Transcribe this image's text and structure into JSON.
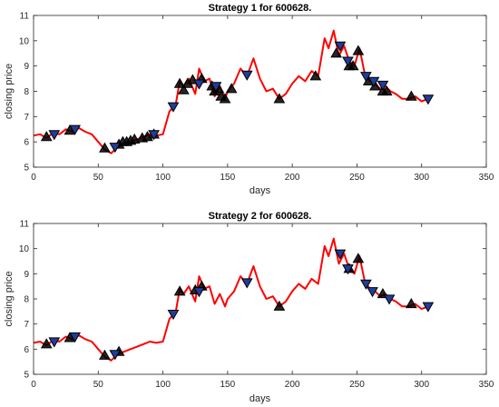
{
  "chart_data": [
    {
      "type": "line",
      "title": "Strategy 1 for 600628.",
      "xlabel": "days",
      "ylabel": "closing price",
      "xlim": [
        0,
        350
      ],
      "ylim": [
        5,
        11
      ],
      "xticks": [
        0,
        50,
        100,
        150,
        200,
        250,
        300,
        350
      ],
      "yticks": [
        5,
        6,
        7,
        8,
        9,
        10,
        11
      ],
      "grid": false,
      "line_color": "#ff0000",
      "series": [
        {
          "x": [
            0,
            5,
            10,
            15,
            20,
            25,
            30,
            35,
            40,
            45,
            50,
            55,
            60,
            65,
            70,
            75,
            80,
            85,
            90,
            95,
            100,
            105,
            110,
            113,
            116,
            120,
            125,
            128,
            132,
            136,
            140,
            144,
            148,
            150,
            155,
            160,
            165,
            170,
            175,
            180,
            185,
            190,
            195,
            200,
            205,
            210,
            215,
            220,
            225,
            228,
            232,
            236,
            240,
            244,
            248,
            252,
            256,
            260,
            264,
            268,
            272,
            276,
            280,
            285,
            290,
            295,
            300,
            305
          ],
          "y": [
            6.25,
            6.3,
            6.15,
            6.35,
            6.3,
            6.5,
            6.4,
            6.55,
            6.4,
            6.3,
            6.0,
            5.7,
            5.55,
            5.8,
            5.9,
            6.0,
            6.1,
            6.2,
            6.3,
            6.25,
            6.3,
            7.2,
            7.5,
            8.4,
            8.2,
            8.5,
            7.9,
            8.9,
            8.4,
            8.5,
            7.8,
            8.2,
            7.7,
            8.0,
            8.3,
            8.9,
            8.6,
            9.3,
            8.5,
            8.0,
            8.1,
            7.7,
            7.9,
            8.3,
            8.6,
            8.4,
            8.8,
            8.6,
            10.1,
            9.7,
            10.4,
            9.4,
            9.8,
            9.2,
            9.0,
            9.7,
            8.7,
            8.4,
            8.3,
            8.1,
            8.2,
            8.0,
            7.9,
            7.7,
            7.7,
            7.8,
            7.6,
            7.7
          ]
        }
      ],
      "markers": {
        "buy_color": "#000000",
        "buy_edge": "#000000",
        "sell_color": "#1f3d99",
        "sell_edge": "#000000",
        "buy": [
          [
            10,
            6.2
          ],
          [
            28,
            6.45
          ],
          [
            55,
            5.75
          ],
          [
            66,
            5.9
          ],
          [
            69,
            6.0
          ],
          [
            72,
            6.0
          ],
          [
            75,
            6.05
          ],
          [
            78,
            6.1
          ],
          [
            84,
            6.15
          ],
          [
            88,
            6.2
          ],
          [
            93,
            6.3
          ],
          [
            113,
            8.3
          ],
          [
            116,
            8.05
          ],
          [
            119,
            8.3
          ],
          [
            123,
            8.45
          ],
          [
            130,
            8.5
          ],
          [
            138,
            8.2
          ],
          [
            140,
            8.0
          ],
          [
            143,
            8.1
          ],
          [
            145,
            7.8
          ],
          [
            148,
            7.7
          ],
          [
            153,
            8.1
          ],
          [
            190,
            7.7
          ],
          [
            218,
            8.6
          ],
          [
            234,
            9.5
          ],
          [
            244,
            9.0
          ],
          [
            247,
            9.0
          ],
          [
            251,
            9.6
          ],
          [
            259,
            8.4
          ],
          [
            264,
            8.2
          ],
          [
            270,
            8.0
          ],
          [
            273,
            8.0
          ],
          [
            292,
            7.8
          ]
        ],
        "sell": [
          [
            16,
            6.3
          ],
          [
            32,
            6.5
          ],
          [
            63,
            5.8
          ],
          [
            93,
            6.3
          ],
          [
            108,
            7.4
          ],
          [
            128,
            8.3
          ],
          [
            141,
            8.2
          ],
          [
            165,
            8.65
          ],
          [
            237,
            9.8
          ],
          [
            243,
            9.2
          ],
          [
            257,
            8.6
          ],
          [
            263,
            8.4
          ],
          [
            270,
            8.25
          ],
          [
            305,
            7.7
          ]
        ]
      }
    },
    {
      "type": "line",
      "title": "Strategy 2 for 600628.",
      "xlabel": "days",
      "ylabel": "closing price",
      "xlim": [
        0,
        350
      ],
      "ylim": [
        5,
        11
      ],
      "xticks": [
        0,
        50,
        100,
        150,
        200,
        250,
        300,
        350
      ],
      "yticks": [
        5,
        6,
        7,
        8,
        9,
        10,
        11
      ],
      "grid": false,
      "line_color": "#ff0000",
      "series": [
        {
          "x": [
            0,
            5,
            10,
            15,
            20,
            25,
            30,
            35,
            40,
            45,
            50,
            55,
            60,
            65,
            70,
            75,
            80,
            85,
            90,
            95,
            100,
            105,
            110,
            113,
            116,
            120,
            125,
            128,
            132,
            136,
            140,
            144,
            148,
            150,
            155,
            160,
            165,
            170,
            175,
            180,
            185,
            190,
            195,
            200,
            205,
            210,
            215,
            220,
            225,
            228,
            232,
            236,
            240,
            244,
            248,
            252,
            256,
            260,
            264,
            268,
            272,
            276,
            280,
            285,
            290,
            295,
            300,
            305
          ],
          "y": [
            6.25,
            6.3,
            6.15,
            6.35,
            6.3,
            6.5,
            6.4,
            6.55,
            6.4,
            6.3,
            6.0,
            5.7,
            5.55,
            5.8,
            5.9,
            6.0,
            6.1,
            6.2,
            6.3,
            6.25,
            6.3,
            7.2,
            7.5,
            8.4,
            8.2,
            8.5,
            7.9,
            8.9,
            8.4,
            8.5,
            7.8,
            8.2,
            7.7,
            8.0,
            8.3,
            8.9,
            8.6,
            9.3,
            8.5,
            8.0,
            8.1,
            7.7,
            7.9,
            8.3,
            8.6,
            8.4,
            8.8,
            8.6,
            10.1,
            9.7,
            10.4,
            9.4,
            9.8,
            9.2,
            9.0,
            9.7,
            8.7,
            8.4,
            8.3,
            8.1,
            8.2,
            8.0,
            7.9,
            7.7,
            7.7,
            7.8,
            7.6,
            7.7
          ]
        }
      ],
      "markers": {
        "buy_color": "#000000",
        "buy_edge": "#000000",
        "sell_color": "#1f3d99",
        "sell_edge": "#000000",
        "buy": [
          [
            10,
            6.2
          ],
          [
            28,
            6.45
          ],
          [
            55,
            5.75
          ],
          [
            66,
            5.9
          ],
          [
            113,
            8.3
          ],
          [
            125,
            8.35
          ],
          [
            130,
            8.5
          ],
          [
            190,
            7.7
          ],
          [
            244,
            9.2
          ],
          [
            251,
            9.6
          ],
          [
            270,
            8.2
          ],
          [
            292,
            7.8
          ]
        ],
        "sell": [
          [
            16,
            6.3
          ],
          [
            32,
            6.5
          ],
          [
            63,
            5.8
          ],
          [
            108,
            7.4
          ],
          [
            128,
            8.3
          ],
          [
            165,
            8.65
          ],
          [
            237,
            9.8
          ],
          [
            243,
            9.2
          ],
          [
            257,
            8.6
          ],
          [
            262,
            8.3
          ],
          [
            275,
            8.0
          ],
          [
            305,
            7.7
          ]
        ]
      }
    }
  ]
}
